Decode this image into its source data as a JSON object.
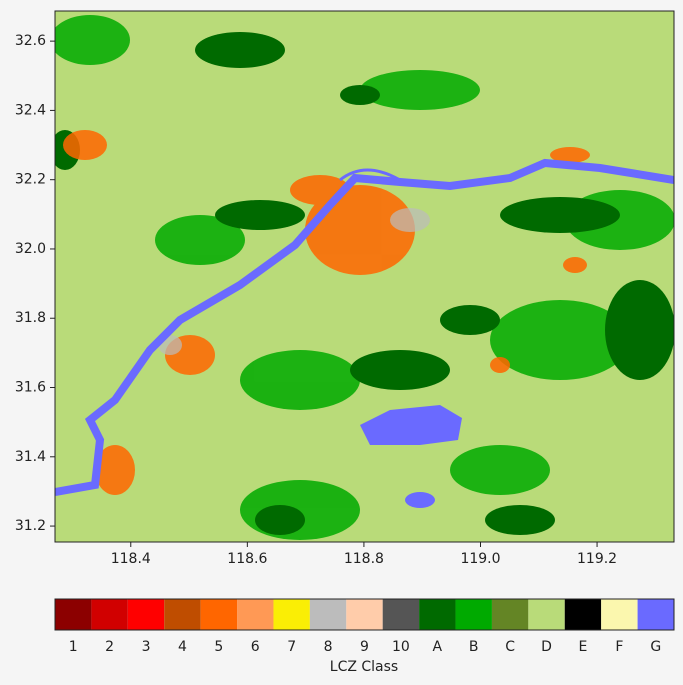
{
  "map": {
    "xlim": [
      118.27,
      119.332
    ],
    "ylim": [
      31.154,
      32.687
    ],
    "xticks": [
      118.4,
      118.6,
      118.8,
      {
        "value": 119,
        "label": "119.0"
      },
      119.2
    ],
    "yticks": [
      31.2,
      31.4,
      31.6,
      31.8,
      {
        "value": 32,
        "label": "32.0"
      },
      32.2,
      32.4,
      32.6
    ]
  },
  "colorbar": {
    "title": "LCZ Class",
    "classes": [
      {
        "label": "1",
        "color": "#8c0000"
      },
      {
        "label": "2",
        "color": "#d10000"
      },
      {
        "label": "3",
        "color": "#ff0000"
      },
      {
        "label": "4",
        "color": "#bf4d00"
      },
      {
        "label": "5",
        "color": "#ff6600"
      },
      {
        "label": "6",
        "color": "#ff9955"
      },
      {
        "label": "7",
        "color": "#faee05"
      },
      {
        "label": "8",
        "color": "#bcbcbc"
      },
      {
        "label": "9",
        "color": "#ffccaa"
      },
      {
        "label": "10",
        "color": "#555555"
      },
      {
        "label": "A",
        "color": "#006a00"
      },
      {
        "label": "B",
        "color": "#00aa00"
      },
      {
        "label": "C",
        "color": "#648525"
      },
      {
        "label": "D",
        "color": "#b9db79"
      },
      {
        "label": "E",
        "color": "#000000"
      },
      {
        "label": "F",
        "color": "#fbf7ae"
      },
      {
        "label": "G",
        "color": "#6a6aff"
      }
    ]
  }
}
